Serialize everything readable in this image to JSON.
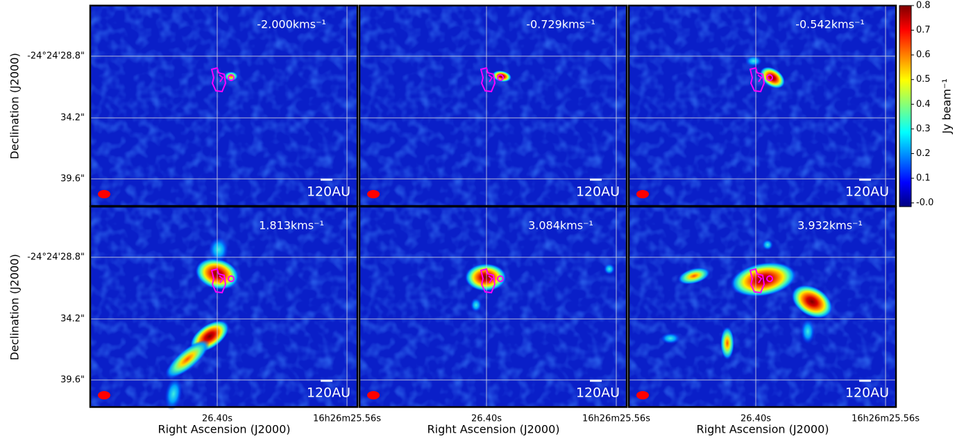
{
  "panels": [
    {
      "velocity": "-2.000kms⁻¹"
    },
    {
      "velocity": "-0.729kms⁻¹"
    },
    {
      "velocity": "-0.542kms⁻¹"
    },
    {
      "velocity": "1.813kms⁻¹"
    },
    {
      "velocity": "3.084kms⁻¹"
    },
    {
      "velocity": "3.932kms⁻¹"
    }
  ],
  "scale_bar": "120AU",
  "y_axis": {
    "label": "Declination (J2000)",
    "ticks": [
      "-24°24'28.8\"",
      "34.2\"",
      "39.6\""
    ]
  },
  "x_axis": {
    "label": "Right Ascension (J2000)",
    "ticks": [
      "26.40s",
      "16h26m25.56s"
    ]
  },
  "colorbar": {
    "label": "Jy beam⁻¹",
    "lim": [
      -0.015,
      0.8
    ],
    "ticks": [
      {
        "value": 0,
        "label": "-0.0"
      },
      0.1,
      0.2,
      0.3,
      0.4,
      0.5,
      0.6,
      0.7,
      0.8
    ]
  }
}
